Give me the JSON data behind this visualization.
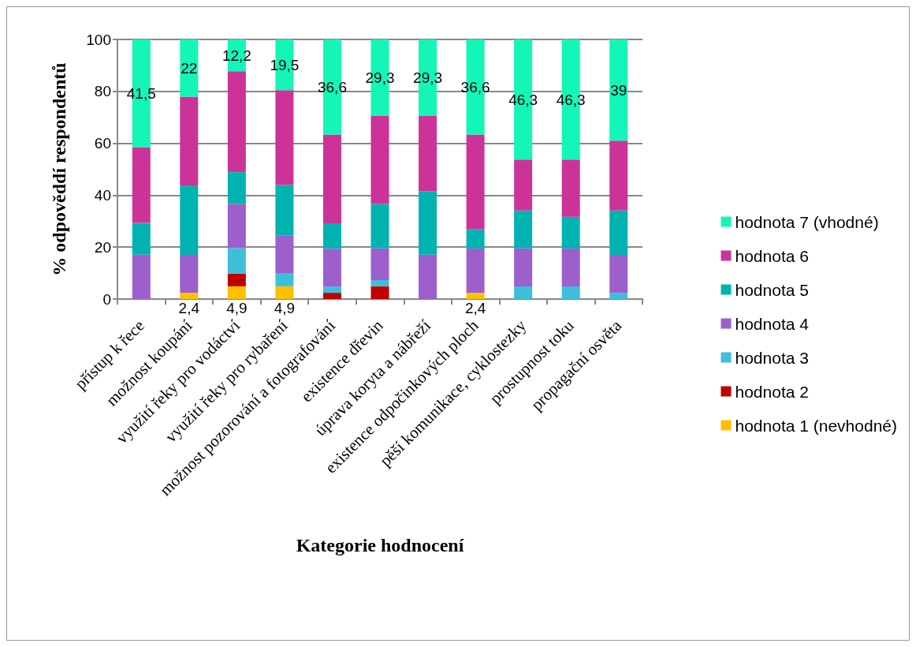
{
  "chart_data": {
    "type": "bar",
    "stacked": true,
    "xlabel": "Kategorie hodnocení",
    "ylabel": "% odpověddí respondentů",
    "categories": [
      "přístup k řece",
      "možnost koupání",
      "využití řeky pro vodáctví",
      "využití řeky pro rybaření",
      "možnost pozorování a fotografování",
      "existence dřevin",
      "úprava koryta a nábřeží",
      "existence odpočinkových ploch",
      "pěší komunikace, cyklostezky",
      "prostupnost toku",
      "propagační osvěta"
    ],
    "series": [
      {
        "name": "hodnota 1 (nevhodné)",
        "color": "#ffc000",
        "values": [
          0,
          2.4,
          4.9,
          4.9,
          0,
          0,
          0,
          2.4,
          0,
          0,
          0
        ],
        "value_labels": [
          null,
          "2,4",
          "4,9",
          "4,9",
          null,
          null,
          null,
          "2,4",
          null,
          null,
          null
        ]
      },
      {
        "name": "hodnota 2",
        "color": "#c00000",
        "values": [
          0,
          0,
          4.9,
          0,
          2.4,
          4.9,
          0,
          0,
          0,
          0,
          0
        ]
      },
      {
        "name": "hodnota 3",
        "color": "#3dbfd9",
        "values": [
          0,
          0,
          9.8,
          4.9,
          2.4,
          2.4,
          0,
          0,
          4.9,
          4.9,
          2.4
        ]
      },
      {
        "name": "hodnota 4",
        "color": "#9c5fcc",
        "values": [
          17.1,
          14.6,
          17.1,
          14.6,
          14.6,
          12.2,
          17.1,
          17.1,
          14.6,
          14.6,
          14.6
        ]
      },
      {
        "name": "hodnota 5",
        "color": "#00b2b0",
        "values": [
          12.2,
          26.8,
          12.2,
          19.5,
          9.8,
          17.1,
          24.4,
          7.3,
          14.6,
          12.2,
          17.1
        ]
      },
      {
        "name": "hodnota 6",
        "color": "#cc3399",
        "values": [
          29.2,
          34.2,
          38.9,
          36.6,
          34.2,
          34.1,
          29.2,
          36.6,
          19.6,
          22,
          26.9
        ]
      },
      {
        "name": "hodnota 7 (vhodné)",
        "color": "#14f5b8",
        "values": [
          41.5,
          22,
          12.2,
          19.5,
          36.6,
          29.3,
          29.3,
          36.6,
          46.3,
          46.3,
          39
        ],
        "value_labels": [
          "41,5",
          "22",
          "12,2",
          "19,5",
          "36,6",
          "29,3",
          "29,3",
          "36,6",
          "46,3",
          "46,3",
          "39"
        ]
      }
    ],
    "ylim": [
      0,
      100
    ],
    "yticks": [
      0,
      20,
      40,
      60,
      80,
      100
    ],
    "grid": "y",
    "legend": "right"
  }
}
